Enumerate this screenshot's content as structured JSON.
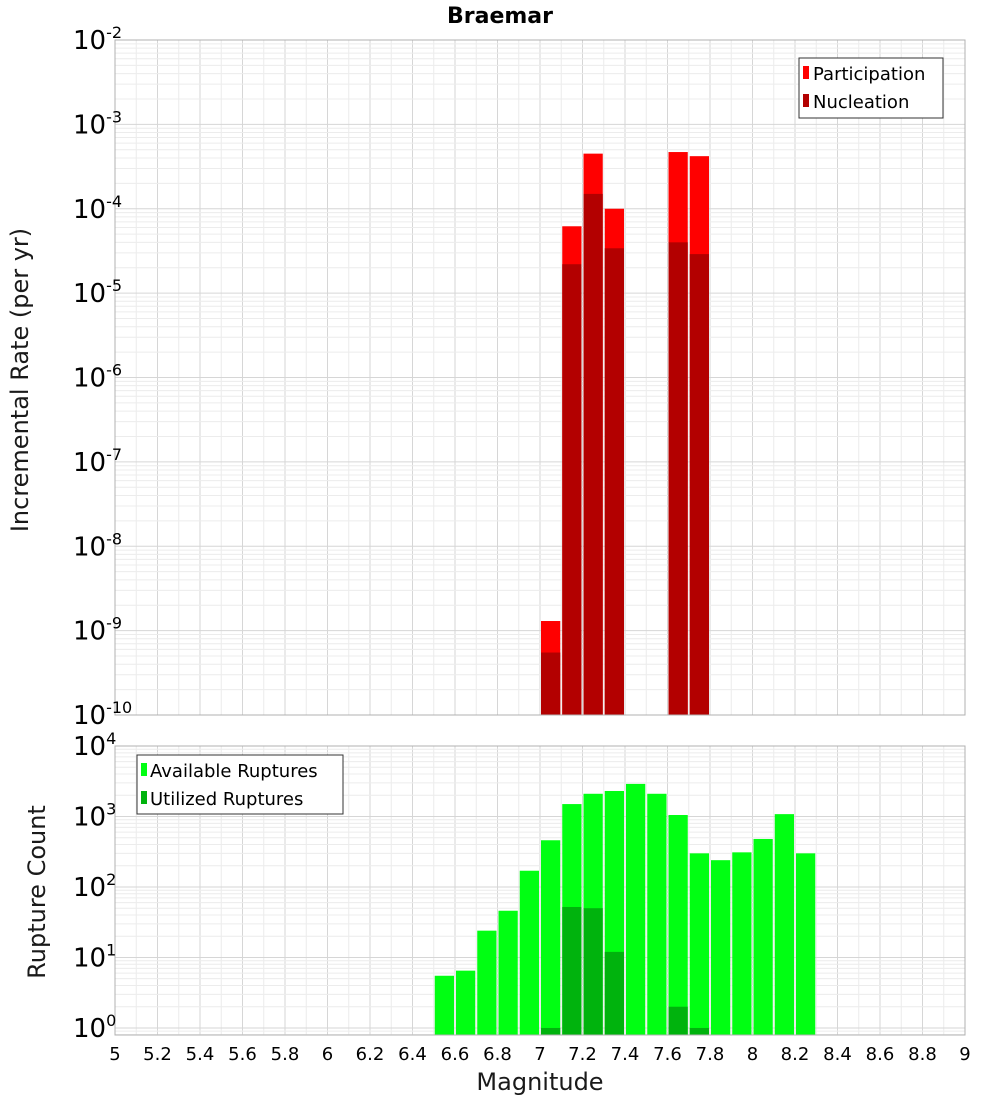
{
  "chart_data": [
    {
      "type": "bar",
      "title": "Braemar",
      "ylabel": "Incremental Rate (per yr)",
      "xlabel": "",
      "yscale": "log",
      "xlim": [
        5,
        9
      ],
      "ylim_exp": [
        -10,
        -2
      ],
      "bin_width": 0.1,
      "y_ticks": [
        {
          "base": "10",
          "exp": "-10"
        },
        {
          "base": "10",
          "exp": "-9"
        },
        {
          "base": "10",
          "exp": "-8"
        },
        {
          "base": "10",
          "exp": "-7"
        },
        {
          "base": "10",
          "exp": "-6"
        },
        {
          "base": "10",
          "exp": "-5"
        },
        {
          "base": "10",
          "exp": "-4"
        },
        {
          "base": "10",
          "exp": "-3"
        },
        {
          "base": "10",
          "exp": "-2"
        }
      ],
      "legend_position": "top-right",
      "series": [
        {
          "name": "Participation",
          "color": "#ff0000",
          "x": [
            7.05,
            7.15,
            7.25,
            7.35,
            7.65,
            7.75
          ],
          "values": [
            1.3e-09,
            6.2e-05,
            0.00045,
            0.0001,
            0.00047,
            0.00042
          ]
        },
        {
          "name": "Nucleation",
          "color": "#b30000",
          "x": [
            7.05,
            7.15,
            7.25,
            7.35,
            7.65,
            7.75
          ],
          "values": [
            5.5e-10,
            2.2e-05,
            0.00015,
            3.4e-05,
            4e-05,
            2.9e-05
          ]
        }
      ],
      "grid": true
    },
    {
      "type": "bar",
      "title": "",
      "ylabel": "Rupture Count",
      "xlabel": "Magnitude",
      "yscale": "log",
      "xlim": [
        5,
        9
      ],
      "ylim_exp": [
        -0.1,
        4
      ],
      "bin_width": 0.1,
      "x_ticks": [
        "5",
        "5.2",
        "5.4",
        "5.6",
        "5.8",
        "6",
        "6.2",
        "6.4",
        "6.6",
        "6.8",
        "7",
        "7.2",
        "7.4",
        "7.6",
        "7.8",
        "8",
        "8.2",
        "8.4",
        "8.6",
        "8.8",
        "9"
      ],
      "y_ticks": [
        {
          "base": "10",
          "exp": "0"
        },
        {
          "base": "10",
          "exp": "1"
        },
        {
          "base": "10",
          "exp": "2"
        },
        {
          "base": "10",
          "exp": "3"
        },
        {
          "base": "10",
          "exp": "4"
        }
      ],
      "legend_position": "top-left",
      "series": [
        {
          "name": "Available Ruptures",
          "color": "#00ff12",
          "x": [
            6.55,
            6.65,
            6.75,
            6.85,
            6.95,
            7.05,
            7.15,
            7.25,
            7.35,
            7.45,
            7.55,
            7.65,
            7.75,
            7.85,
            7.95,
            8.05,
            8.15,
            8.25
          ],
          "values": [
            5.5,
            6.5,
            24,
            46,
            170,
            460,
            1500,
            2100,
            2300,
            2900,
            2100,
            1050,
            300,
            240,
            310,
            480,
            1080,
            300
          ]
        },
        {
          "name": "Utilized Ruptures",
          "color": "#00b30d",
          "x": [
            7.05,
            7.15,
            7.25,
            7.35,
            7.65,
            7.75
          ],
          "values": [
            1,
            52,
            50,
            12,
            2,
            1
          ]
        }
      ],
      "grid": true
    }
  ]
}
